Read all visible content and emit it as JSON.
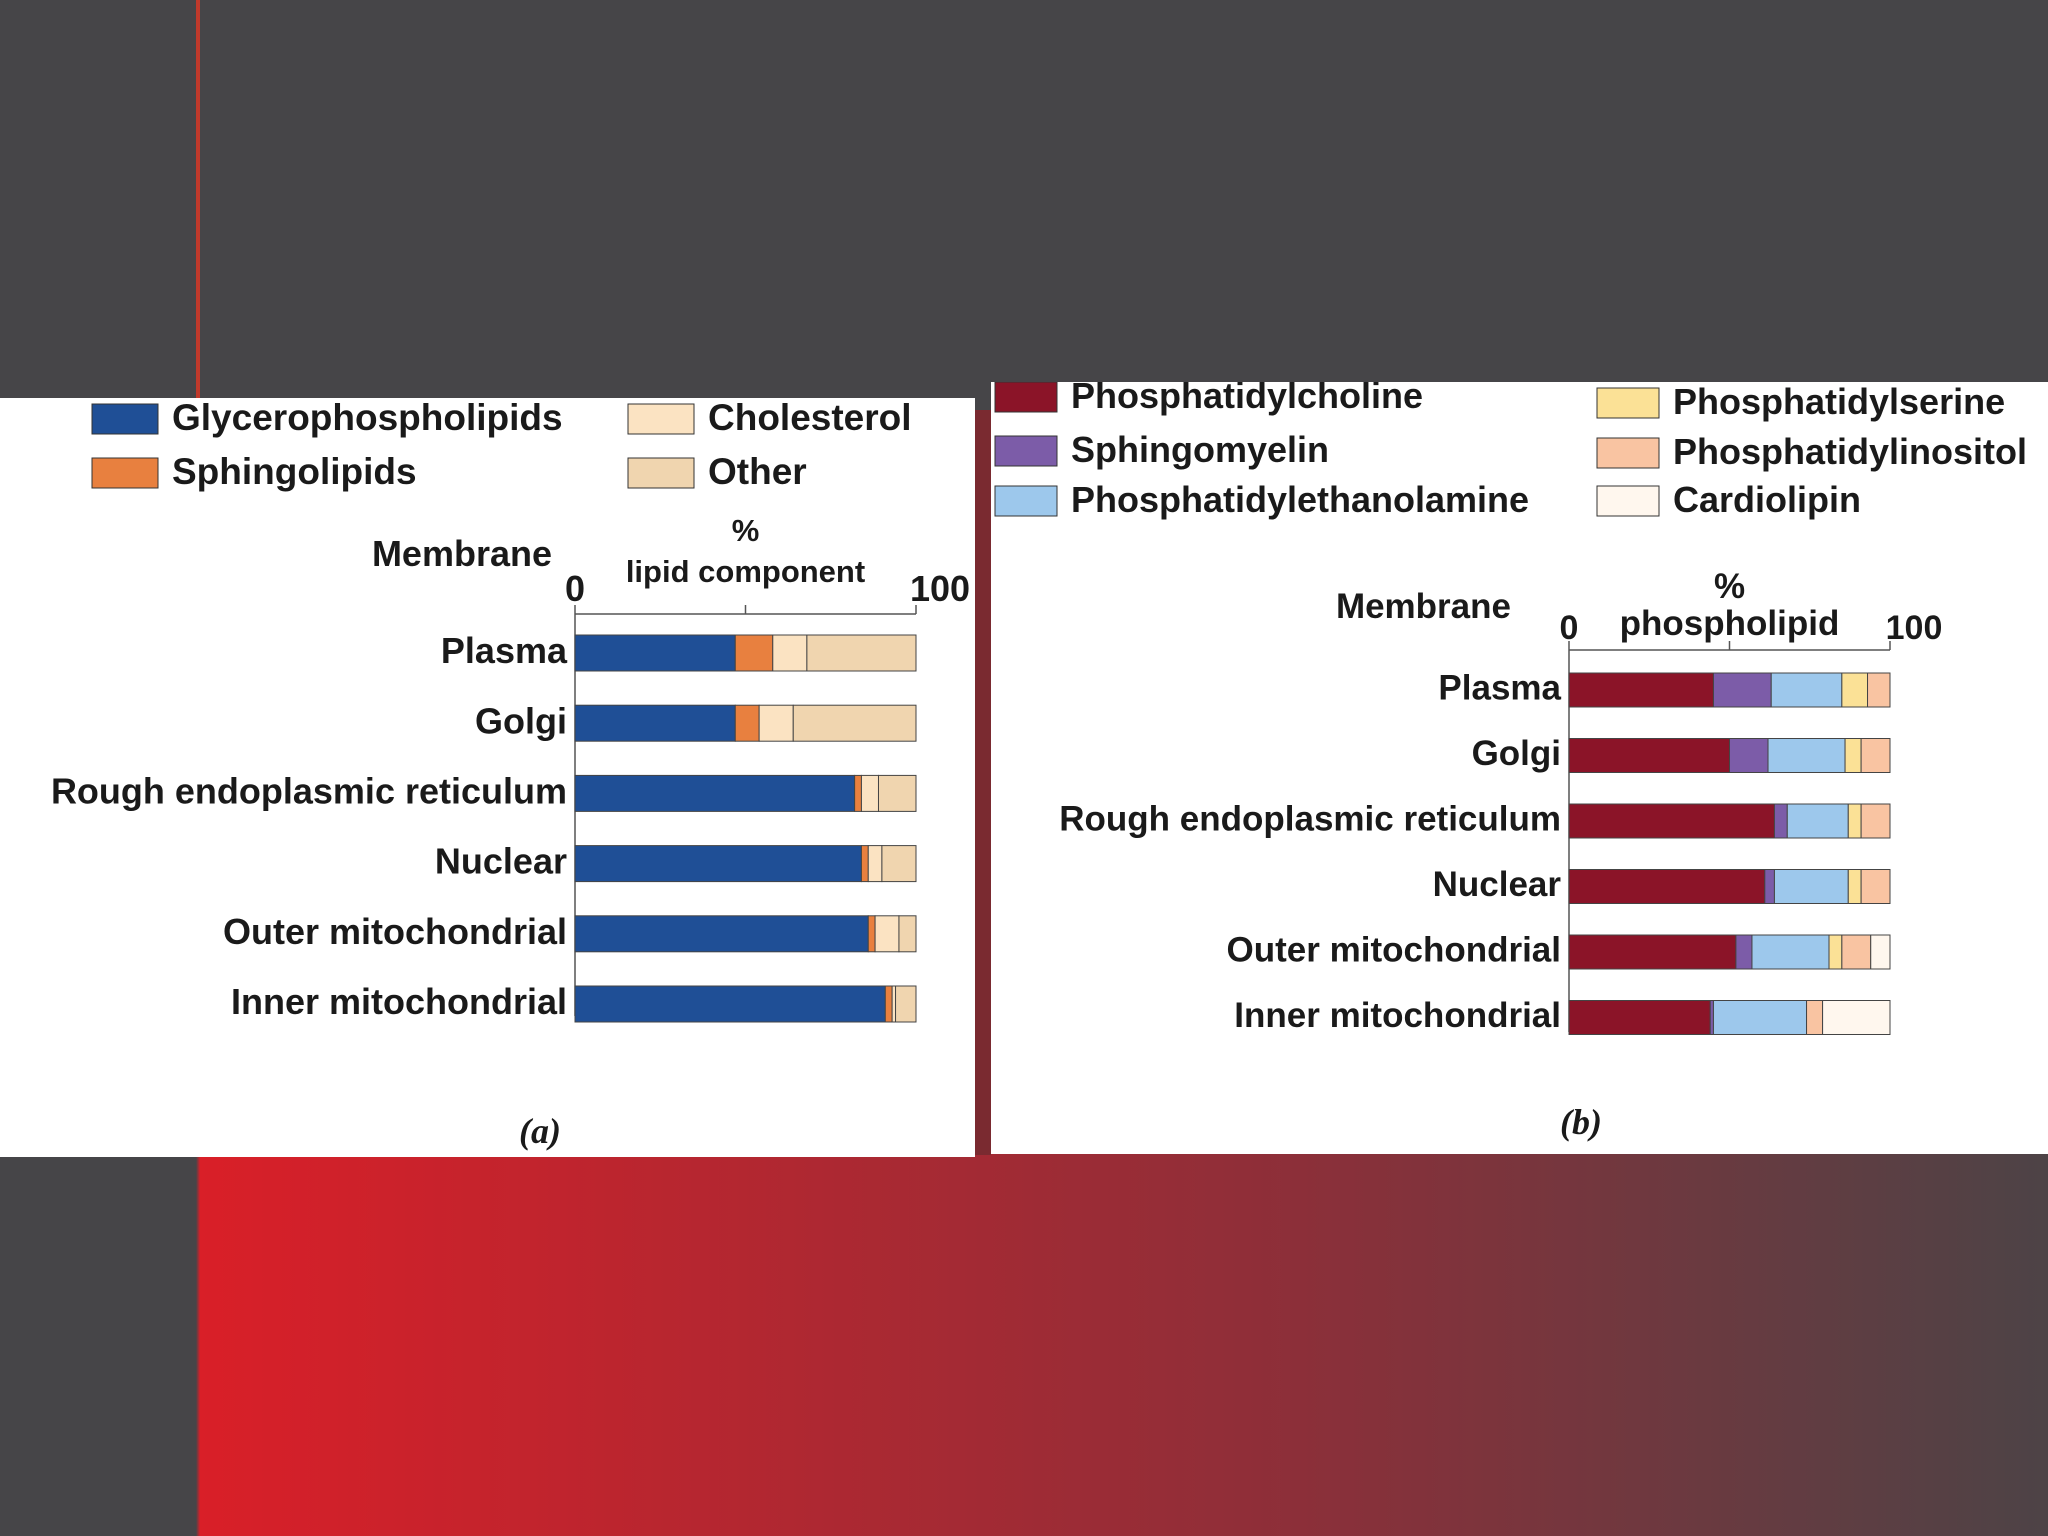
{
  "colors": {
    "background": "#464548",
    "accent_red": "#d91f28",
    "divider": "#7a2a30"
  },
  "chart_data": [
    {
      "type": "bar",
      "stacked": true,
      "orientation": "horizontal",
      "panel_label": "(a)",
      "category_header": "Membrane",
      "axis_label_top": "%",
      "axis_label_bottom": "lipid component",
      "xlim": [
        0,
        100
      ],
      "xticks": [
        0,
        100
      ],
      "categories": [
        "Plasma",
        "Golgi",
        "Rough endoplasmic reticulum",
        "Nuclear",
        "Outer mitochondrial",
        "Inner mitochondrial"
      ],
      "legend_placement": "top",
      "series": [
        {
          "name": "Glycerophospholipids",
          "color": "#1f4f96",
          "values": [
            47,
            47,
            82,
            84,
            86,
            91
          ]
        },
        {
          "name": "Sphingolipids",
          "color": "#e8803f",
          "values": [
            11,
            7,
            2,
            2,
            2,
            2
          ]
        },
        {
          "name": "Cholesterol",
          "color": "#fbe3c2",
          "values": [
            10,
            10,
            5,
            4,
            7,
            1
          ]
        },
        {
          "name": "Other",
          "color": "#f0d5af",
          "values": [
            32,
            36,
            11,
            10,
            5,
            6
          ]
        }
      ]
    },
    {
      "type": "bar",
      "stacked": true,
      "orientation": "horizontal",
      "panel_label": "(b)",
      "category_header": "Membrane",
      "axis_label_top": "%",
      "axis_label_bottom": "phospholipid",
      "xlim": [
        0,
        100
      ],
      "xticks": [
        0,
        100
      ],
      "categories": [
        "Plasma",
        "Golgi",
        "Rough endoplasmic reticulum",
        "Nuclear",
        "Outer mitochondrial",
        "Inner mitochondrial"
      ],
      "legend_placement": "top",
      "series": [
        {
          "name": "Phosphatidylcholine",
          "color": "#8b1428",
          "values": [
            45,
            50,
            64,
            61,
            52,
            44
          ]
        },
        {
          "name": "Sphingomyelin",
          "color": "#7c5ca8",
          "values": [
            18,
            12,
            4,
            3,
            5,
            1
          ]
        },
        {
          "name": "Phosphatidylethanolamine",
          "color": "#9dc8ec",
          "values": [
            22,
            24,
            19,
            23,
            24,
            29
          ]
        },
        {
          "name": "Phosphatidylserine",
          "color": "#fbe196",
          "values": [
            8,
            5,
            4,
            4,
            4,
            0
          ]
        },
        {
          "name": "Phosphatidylinositol",
          "color": "#f9c4a2",
          "values": [
            7,
            9,
            9,
            9,
            9,
            5
          ]
        },
        {
          "name": "Cardiolipin",
          "color": "#fff7ee",
          "values": [
            0,
            0,
            0,
            0,
            6,
            21
          ]
        }
      ]
    }
  ]
}
